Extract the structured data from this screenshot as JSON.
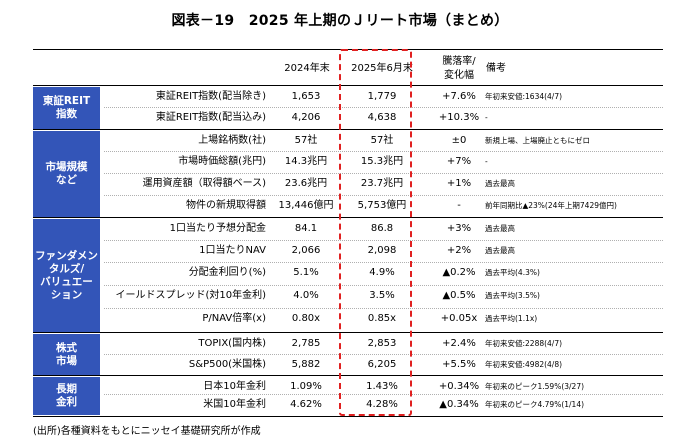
{
  "title": "図表－19　2025 年上期のＪリート市場（まとめ）",
  "headers": {
    "y2024": "2024年末",
    "y2025": "2025年6月末",
    "change_line1": "騰落率/",
    "change_line2": "変化幅",
    "note": "備考"
  },
  "categories": [
    {
      "name": "東証REIT\n指数"
    },
    {
      "name": "市場規模\nなど"
    },
    {
      "name": "ファンダメン\nタルズ/\nバリュエー\nション"
    },
    {
      "name": "株式\n市場"
    },
    {
      "name": "長期\n金利"
    }
  ],
  "rows": [
    {
      "label": "東証REIT指数(配当除き)",
      "y2024": "1,653",
      "y2025": "1,779",
      "change": "+7.6%",
      "note": "年初来安値:1634(4/7)"
    },
    {
      "label": "東証REIT指数(配当込み)",
      "y2024": "4,206",
      "y2025": "4,638",
      "change": "+10.3%",
      "note": "-"
    },
    {
      "label": "上場銘柄数(社)",
      "y2024": "57社",
      "y2025": "57社",
      "change": "±0",
      "note": "新規上場、上場廃止ともにゼロ"
    },
    {
      "label": "市場時価総額(兆円)",
      "y2024": "14.3兆円",
      "y2025": "15.3兆円",
      "change": "+7%",
      "note": "-"
    },
    {
      "label": "運用資産額（取得額ベース)",
      "y2024": "23.6兆円",
      "y2025": "23.7兆円",
      "change": "+1%",
      "note": "過去最高"
    },
    {
      "label": "物件の新規取得額",
      "y2024": "13,446億円",
      "y2025": "5,753億円",
      "change": "-",
      "note": "前年同期比▲23%(24年上期7429億円)"
    },
    {
      "label": "1口当たり予想分配金",
      "y2024": "84.1",
      "y2025": "86.8",
      "change": "+3%",
      "note": "過去最高"
    },
    {
      "label": "1口当たりNAV",
      "y2024": "2,066",
      "y2025": "2,098",
      "change": "+2%",
      "note": "過去最高"
    },
    {
      "label": "分配金利回り(%)",
      "y2024": "5.1%",
      "y2025": "4.9%",
      "change": "▲0.2%",
      "note": "過去平均(4.3%)"
    },
    {
      "label": "イールドスプレッド(対10年金利)",
      "y2024": "4.0%",
      "y2025": "3.5%",
      "change": "▲0.5%",
      "note": "過去平均(3.5%)"
    },
    {
      "label": "P/NAV倍率(x)",
      "y2024": "0.80x",
      "y2025": "0.85x",
      "change": "+0.05x",
      "note": "過去平均(1.1x)"
    },
    {
      "label": "TOPIX(国内株)",
      "y2024": "2,785",
      "y2025": "2,853",
      "change": "+2.4%",
      "note": "年初来安値:2288(4/7)"
    },
    {
      "label": "S&P500(米国株)",
      "y2024": "5,882",
      "y2025": "6,205",
      "change": "+5.5%",
      "note": "年初来安値:4982(4/8)"
    },
    {
      "label": "日本10年金利",
      "y2024": "1.09%",
      "y2025": "1.43%",
      "change": "+0.34%",
      "note": "年初来のピーク1.59%(3/27)"
    },
    {
      "label": "米国10年金利",
      "y2024": "4.62%",
      "y2025": "4.28%",
      "change": "▲0.34%",
      "note": "年初来のピーク4.79%(1/14)"
    }
  ],
  "source": "(出所)各種資料をもとにニッセイ基礎研究所が作成"
}
